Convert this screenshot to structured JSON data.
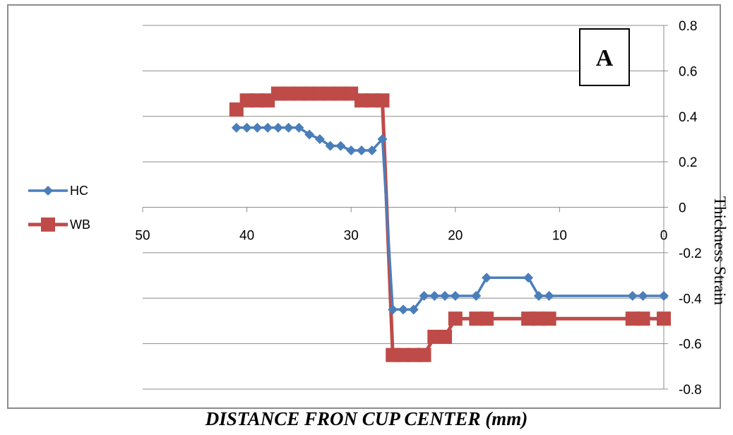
{
  "chart_data": {
    "type": "line",
    "panel_label": "A",
    "xlabel": "DISTANCE FRON CUP CENTER (mm)",
    "ylabel": "Thickness Strain",
    "xlim": [
      50,
      0
    ],
    "x_reversed": true,
    "ylim": [
      -0.8,
      0.8
    ],
    "x_ticks": [
      "50",
      "40",
      "30",
      "20",
      "10",
      "0"
    ],
    "x_tick_values": [
      50,
      40,
      30,
      20,
      10,
      0
    ],
    "y_ticks": [
      "0.8",
      "0.6",
      "0.4",
      "0.2",
      "0",
      "-0.2",
      "-0.4",
      "-0.6",
      "-0.8"
    ],
    "y_tick_values": [
      0.8,
      0.6,
      0.4,
      0.2,
      0,
      -0.2,
      -0.4,
      -0.6,
      -0.8
    ],
    "grid": "horizontal",
    "y_axis_side": "right",
    "legend_position": "left",
    "series": [
      {
        "name": "HC",
        "color": "#4a7ebb",
        "marker": "diamond",
        "x": [
          41,
          40,
          39,
          38,
          37,
          36,
          35,
          34,
          33,
          32,
          31,
          30,
          29,
          28,
          27,
          26,
          25,
          24,
          23,
          22,
          21,
          20,
          18,
          17,
          13,
          12,
          11,
          3,
          2,
          0
        ],
        "y": [
          0.35,
          0.35,
          0.35,
          0.35,
          0.35,
          0.35,
          0.35,
          0.32,
          0.3,
          0.27,
          0.27,
          0.25,
          0.25,
          0.25,
          0.3,
          -0.45,
          -0.45,
          -0.45,
          -0.39,
          -0.39,
          -0.39,
          -0.39,
          -0.39,
          -0.31,
          -0.31,
          -0.39,
          -0.39,
          -0.39,
          -0.39,
          -0.39
        ]
      },
      {
        "name": "WB",
        "color": "#be4b48",
        "marker": "square",
        "x": [
          41,
          40,
          39,
          38,
          37,
          36,
          35,
          34,
          33,
          32,
          31,
          30,
          29,
          28,
          27,
          26,
          25,
          24,
          23,
          22,
          21,
          20,
          18,
          17,
          13,
          12,
          11,
          3,
          2,
          0
        ],
        "y": [
          0.43,
          0.47,
          0.47,
          0.47,
          0.5,
          0.5,
          0.5,
          0.5,
          0.5,
          0.5,
          0.5,
          0.5,
          0.47,
          0.47,
          0.47,
          -0.65,
          -0.65,
          -0.65,
          -0.65,
          -0.57,
          -0.57,
          -0.49,
          -0.49,
          -0.49,
          -0.49,
          -0.49,
          -0.49,
          -0.49,
          -0.49,
          -0.49
        ]
      }
    ]
  }
}
